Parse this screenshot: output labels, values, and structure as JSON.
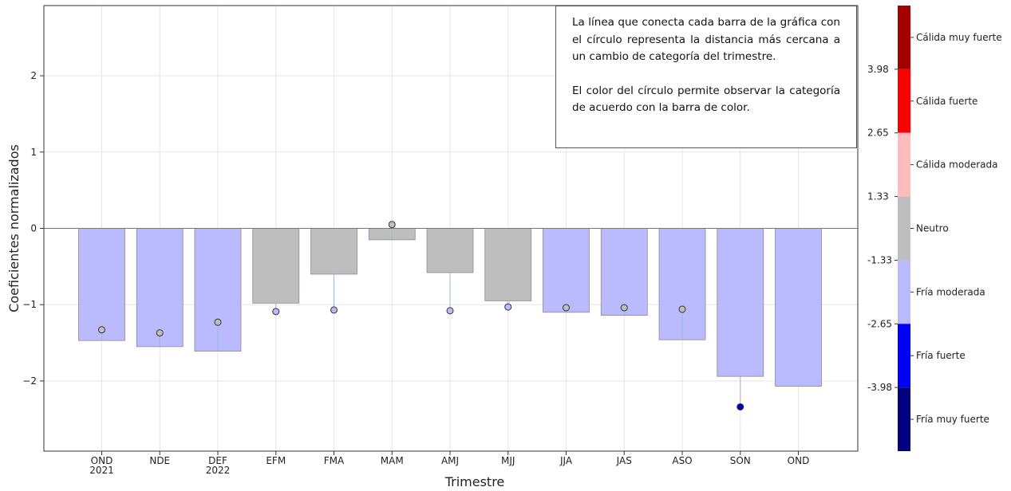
{
  "chart_data": {
    "type": "bar",
    "categories": [
      "OND\n2021",
      "NDE",
      "DEF\n2022",
      "EFM",
      "FMA",
      "MAM",
      "AMJ",
      "MJJ",
      "JJA",
      "JAS",
      "ASO",
      "SON",
      "OND"
    ],
    "values": [
      -1.47,
      -1.55,
      -1.61,
      -0.98,
      -0.6,
      -0.15,
      -0.58,
      -0.95,
      -1.1,
      -1.14,
      -1.46,
      -1.94,
      -2.07
    ],
    "markers": [
      -1.33,
      -1.37,
      -1.23,
      -1.09,
      -1.07,
      0.05,
      -1.08,
      -1.03,
      -1.04,
      -1.04,
      -1.06,
      -2.34,
      null
    ],
    "bar_colors": [
      "#babaff",
      "#babaff",
      "#babaff",
      "#bebebe",
      "#bebebe",
      "#bebebe",
      "#bebebe",
      "#bebebe",
      "#babaff",
      "#babaff",
      "#babaff",
      "#babaff",
      "#babaff"
    ],
    "marker_colors": [
      "#bebebe",
      "#bebebe",
      "#bebebe",
      "#babaff",
      "#babaff",
      "#bebebe",
      "#babaff",
      "#babaff",
      "#bebebe",
      "#bebebe",
      "#bebebe",
      "#0000cd",
      null
    ],
    "xlabel": "Trimestre",
    "ylabel": "Coeficientes normalizados",
    "yticks": [
      2,
      1,
      0,
      -1,
      -2
    ],
    "ytick_labels": [
      "2",
      "1",
      "0",
      "−1",
      "−2"
    ],
    "ylim": [
      -2.92,
      2.92
    ],
    "grid": true,
    "colorbar": {
      "bands": [
        {
          "label": "Cálida muy fuerte",
          "color": "#a50000"
        },
        {
          "label": "Cálida fuerte",
          "color": "#ff0000"
        },
        {
          "label": "Cálida moderada",
          "color": "#ffbcbc"
        },
        {
          "label": "Neutro",
          "color": "#bebebe"
        },
        {
          "label": "Fría moderada",
          "color": "#babaff"
        },
        {
          "label": "Fría fuerte",
          "color": "#0000ff"
        },
        {
          "label": "Fría muy fuerte",
          "color": "#000080"
        }
      ],
      "boundaries": [
        "3.98",
        "2.65",
        "1.33",
        "-1.33",
        "-2.65",
        "-3.98"
      ]
    }
  },
  "note": {
    "p1": "La línea que conecta cada barra de la gráfica con el círculo representa la distancia más cercana a un cambio de categoría del trimestre.",
    "p2": "El color del círculo permite observar la categoría de acuerdo con la barra de color."
  }
}
